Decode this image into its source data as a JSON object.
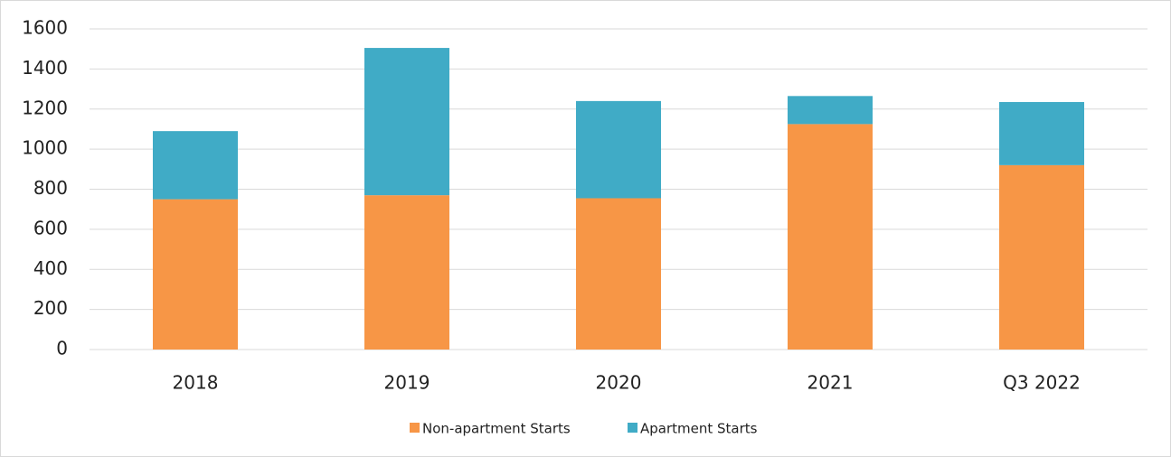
{
  "chart_data": {
    "type": "stacked_bar",
    "categories": [
      "2018",
      "2019",
      "2020",
      "2021",
      "Q3 2022"
    ],
    "series": [
      {
        "name": "Non-apartment Starts",
        "color": "#f79646",
        "values": [
          750,
          770,
          755,
          1125,
          920
        ]
      },
      {
        "name": "Apartment Starts",
        "color": "#40abc6",
        "values": [
          340,
          735,
          485,
          140,
          315
        ]
      }
    ],
    "ylim": [
      0,
      1600
    ],
    "yticks": [
      0,
      200,
      400,
      600,
      800,
      1000,
      1200,
      1400,
      1600
    ],
    "grid": true,
    "legend": "bottom"
  }
}
